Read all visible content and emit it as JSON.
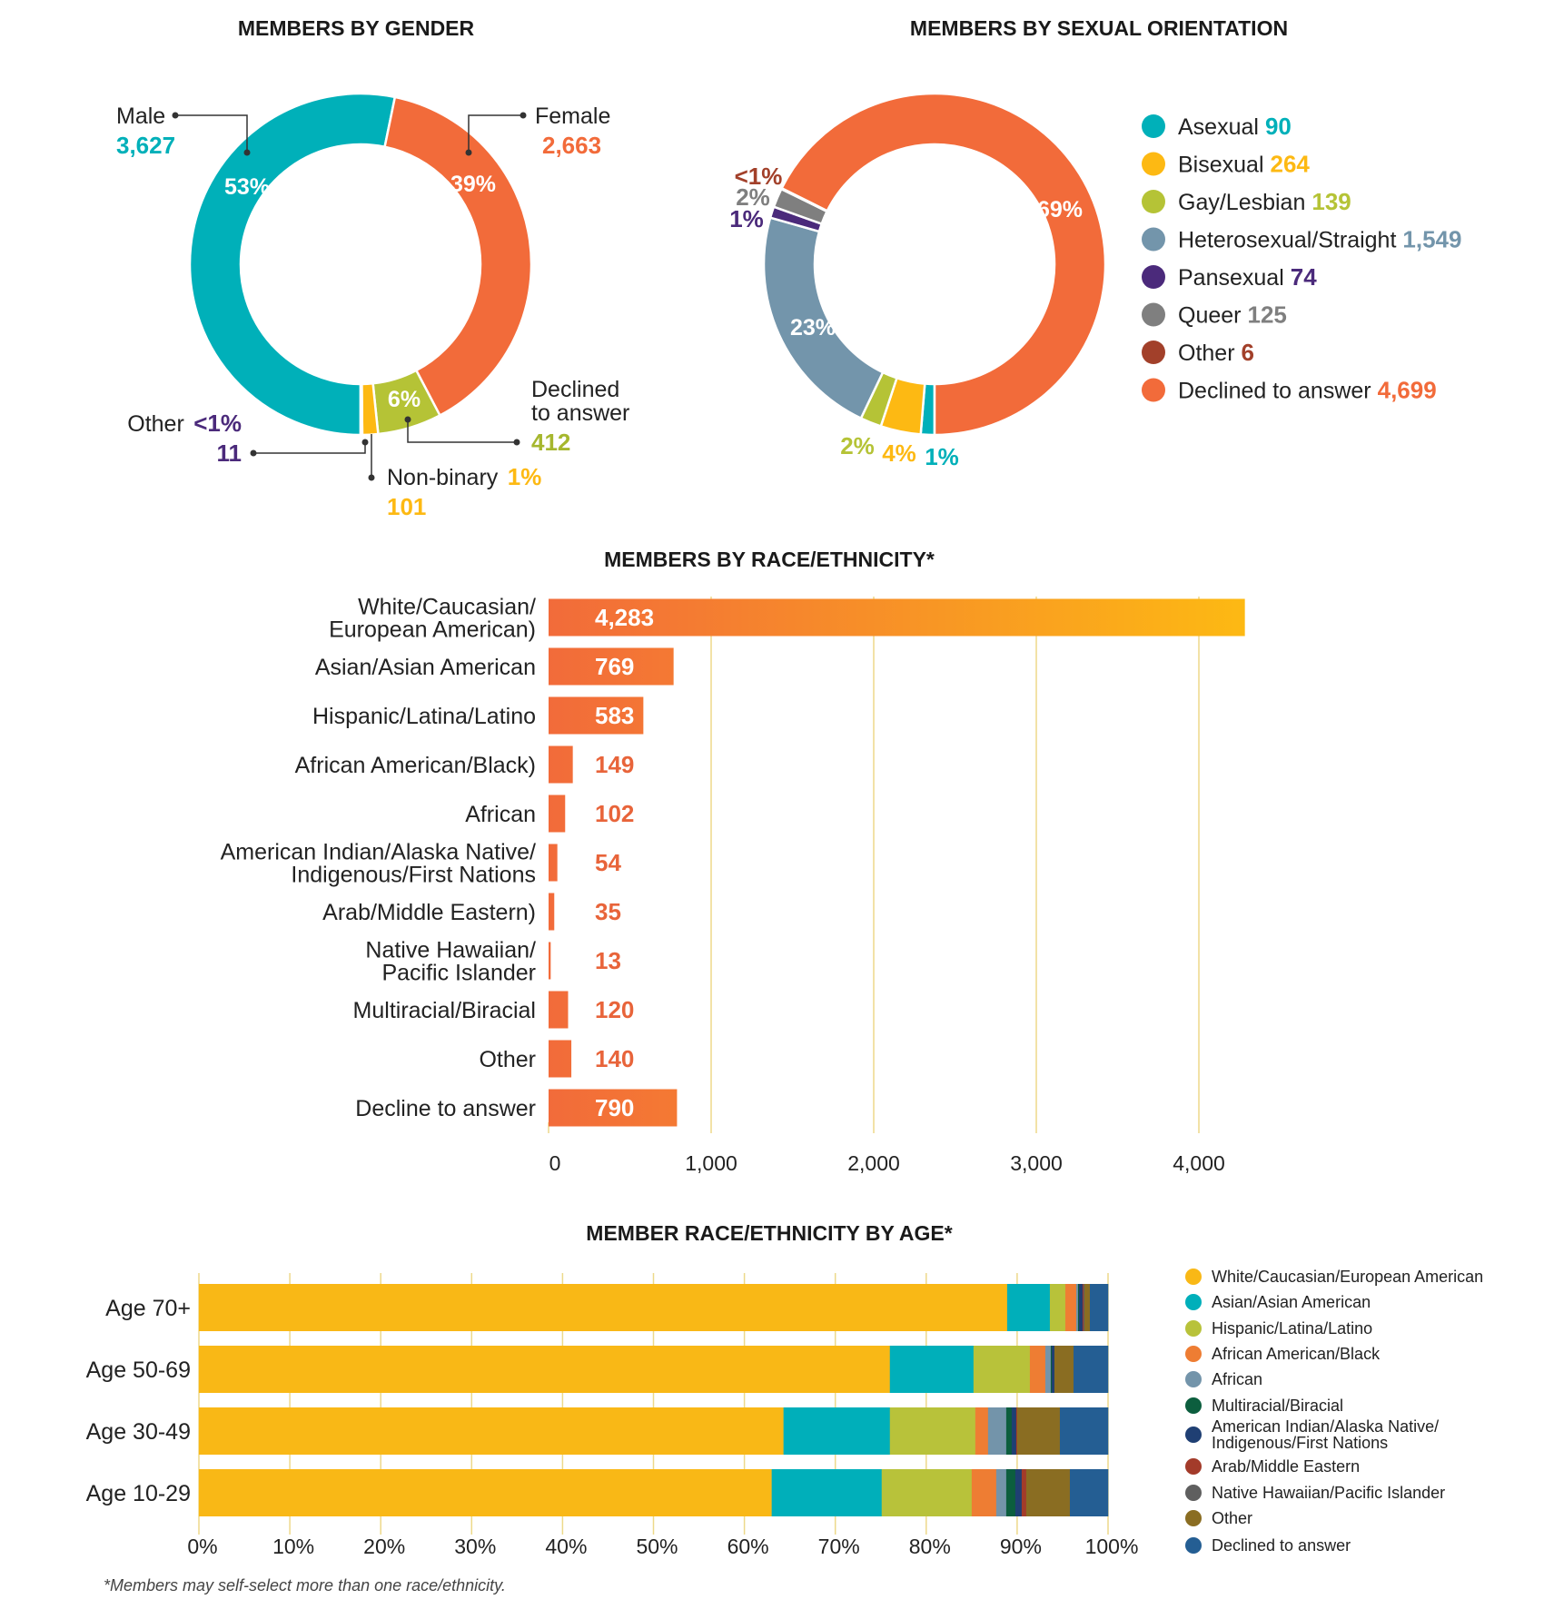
{
  "colors": {
    "teal": "#00B0B9",
    "orange": "#F26B3A",
    "lime": "#B5C336",
    "yellow": "#FDB913",
    "purple": "#4B2A7B",
    "steel": "#7395AB",
    "grey": "#7F7F7F",
    "rust": "#A2402A",
    "grid": "#EDD98A"
  },
  "chart_data": [
    {
      "type": "pie",
      "donut": true,
      "title": "MEMBERS BY GENDER",
      "slices": [
        {
          "label": "Male",
          "label_lines": [
            "Male"
          ],
          "value": 3627,
          "value_text": "3,627",
          "percent_label": "53%",
          "color": "#00B0B9"
        },
        {
          "label": "Female",
          "label_lines": [
            "Female"
          ],
          "value": 2663,
          "value_text": "2,663",
          "percent_label": "39%",
          "color": "#F26B3A"
        },
        {
          "label": "Declined to answer",
          "label_lines": [
            "Declined",
            "to answer"
          ],
          "value": 412,
          "value_text": "412",
          "percent_label": "6%",
          "color": "#B5C336"
        },
        {
          "label": "Non-binary",
          "label_lines": [
            "Non-binary"
          ],
          "value": 101,
          "value_text": "101",
          "percent_label": "1%",
          "color": "#FDB913"
        },
        {
          "label": "Other",
          "label_lines": [
            "Other"
          ],
          "value": 11,
          "value_text": "11",
          "percent_label": "<1%",
          "color": "#4B2A7B"
        }
      ]
    },
    {
      "type": "pie",
      "donut": true,
      "title": "MEMBERS BY SEXUAL ORIENTATION",
      "legend_position": "right",
      "slices": [
        {
          "label": "Asexual",
          "value": 90,
          "value_text": "90",
          "percent_label": "1%",
          "color": "#00B0B9"
        },
        {
          "label": "Bisexual",
          "value": 264,
          "value_text": "264",
          "percent_label": "4%",
          "color": "#FDB913"
        },
        {
          "label": "Gay/Lesbian",
          "value": 139,
          "value_text": "139",
          "percent_label": "2%",
          "color": "#B5C336"
        },
        {
          "label": "Heterosexual/Straight",
          "value": 1549,
          "value_text": "1,549",
          "percent_label": "23%",
          "color": "#7395AB"
        },
        {
          "label": "Pansexual",
          "value": 74,
          "value_text": "74",
          "percent_label": "1%",
          "color": "#4B2A7B"
        },
        {
          "label": "Queer",
          "value": 125,
          "value_text": "125",
          "percent_label": "2%",
          "color": "#7F7F7F"
        },
        {
          "label": "Other",
          "value": 6,
          "value_text": "6",
          "percent_label": "<1%",
          "color": "#A2402A"
        },
        {
          "label": "Declined to answer",
          "value": 4699,
          "value_text": "4,699",
          "percent_label": "69%",
          "color": "#F26B3A"
        }
      ]
    },
    {
      "type": "bar",
      "orientation": "horizontal",
      "title": "MEMBERS BY RACE/ETHNICITY*",
      "categories": [
        [
          "White/Caucasian/",
          "European American)"
        ],
        [
          "Asian/Asian American"
        ],
        [
          "Hispanic/Latina/Latino"
        ],
        [
          "African American/Black)"
        ],
        [
          "African"
        ],
        [
          "American Indian/Alaska Native/",
          "Indigenous/First Nations"
        ],
        [
          "Arab/Middle Eastern)"
        ],
        [
          "Native Hawaiian/",
          "Pacific Islander"
        ],
        [
          "Multiracial/Biracial"
        ],
        [
          "Other"
        ],
        [
          "Decline to answer"
        ]
      ],
      "values": [
        4283,
        769,
        583,
        149,
        102,
        54,
        35,
        13,
        120,
        140,
        790
      ],
      "value_labels": [
        "4,283",
        "769",
        "583",
        "149",
        "102",
        "54",
        "35",
        "13",
        "120",
        "140",
        "790"
      ],
      "xlim": [
        0,
        4300
      ],
      "xticks": [
        0,
        1000,
        2000,
        3000,
        4000
      ],
      "xtick_labels": [
        "0",
        "1,000",
        "2,000",
        "3,000",
        "4,000"
      ],
      "grid": true,
      "bar_gradient": [
        "#F26B3A",
        "#FDB913"
      ]
    },
    {
      "type": "bar",
      "orientation": "horizontal",
      "stacked": true,
      "percent": true,
      "title": "MEMBER RACE/ETHNICITY BY AGE*",
      "categories": [
        "Age 70+",
        "Age 50-69",
        "Age 30-49",
        "Age 10-29"
      ],
      "xlim": [
        0,
        100
      ],
      "xtick_labels": [
        "0%",
        "10%",
        "20%",
        "30%",
        "40%",
        "50%",
        "60%",
        "70%",
        "80%",
        "90%",
        "100%"
      ],
      "grid": true,
      "legend_position": "right",
      "series": [
        {
          "name": "White/Caucasian/European American",
          "name_lines": [
            "White/Caucasian/European American"
          ],
          "color": "#F9B816",
          "values": [
            88.9,
            76.0,
            64.3,
            63.0
          ]
        },
        {
          "name": "Asian/Asian American",
          "name_lines": [
            "Asian/Asian American"
          ],
          "color": "#00AFBA",
          "values": [
            4.7,
            9.2,
            11.7,
            12.1
          ]
        },
        {
          "name": "Hispanic/Latina/Latino",
          "name_lines": [
            "Hispanic/Latina/Latino"
          ],
          "color": "#B8C23A",
          "values": [
            1.7,
            6.2,
            9.4,
            9.9
          ]
        },
        {
          "name": "African American/Black",
          "name_lines": [
            "African American/Black"
          ],
          "color": "#EE7D33",
          "values": [
            1.2,
            1.7,
            1.4,
            2.7
          ]
        },
        {
          "name": "African",
          "name_lines": [
            "African"
          ],
          "color": "#7394AA",
          "values": [
            0.2,
            0.6,
            2.0,
            1.1
          ]
        },
        {
          "name": "Multiracial/Biracial",
          "name_lines": [
            "Multiracial/Biracial"
          ],
          "color": "#0C5E3E",
          "values": [
            0.1,
            0.1,
            0.6,
            1.0
          ]
        },
        {
          "name": "American Indian/Alaska Native/Indigenous/First Nations",
          "name_lines": [
            "American Indian/Alaska Native/",
            "Indigenous/First Nations"
          ],
          "color": "#1F3F73",
          "values": [
            0.4,
            0.3,
            0.5,
            0.7
          ]
        },
        {
          "name": "Arab/Middle Eastern",
          "name_lines": [
            "Arab/Middle Eastern"
          ],
          "color": "#A33B2A",
          "values": [
            0.1,
            0.0,
            0.1,
            0.5
          ]
        },
        {
          "name": "Native Hawaiian/Pacific Islander",
          "name_lines": [
            "Native Hawaiian/Pacific Islander"
          ],
          "color": "#5F5F5F",
          "values": [
            0.1,
            0.0,
            0.0,
            0.0
          ]
        },
        {
          "name": "Other",
          "name_lines": [
            "Other"
          ],
          "color": "#8A6D22",
          "values": [
            0.6,
            2.1,
            4.7,
            4.8
          ]
        },
        {
          "name": "Declined to answer",
          "name_lines": [
            "Declined to answer"
          ],
          "color": "#245E93",
          "values": [
            2.0,
            3.8,
            5.3,
            4.2
          ]
        }
      ]
    }
  ],
  "footnote": "*Members may self-select more than one race/ethnicity."
}
